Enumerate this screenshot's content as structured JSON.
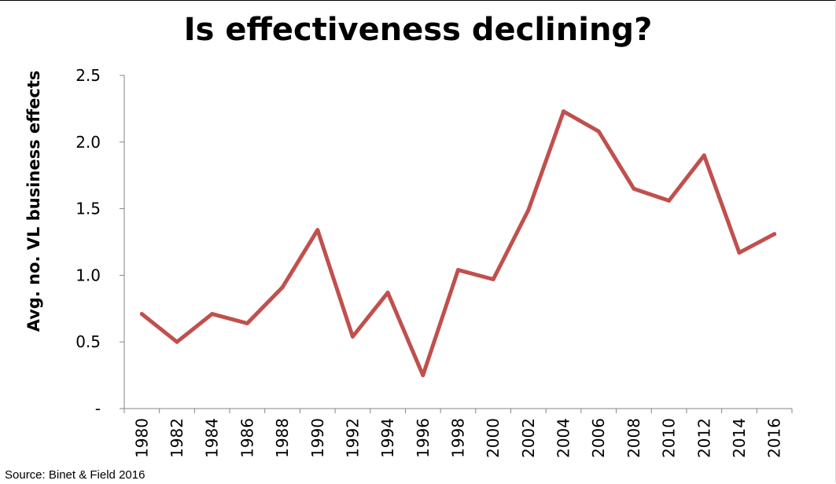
{
  "title": "Is effectiveness declining?",
  "source": "Source: Binet & Field 2016",
  "chart_data": {
    "type": "line",
    "title": "Is effectiveness declining?",
    "xlabel": "",
    "ylabel": "Avg. no. VL business effects",
    "categories": [
      "1980",
      "1982",
      "1984",
      "1986",
      "1988",
      "1990",
      "1992",
      "1994",
      "1996",
      "1998",
      "2000",
      "2002",
      "2004",
      "2006",
      "2008",
      "2010",
      "2012",
      "2014",
      "2016"
    ],
    "series": [
      {
        "values": [
          0.71,
          0.5,
          0.71,
          0.64,
          0.91,
          1.34,
          0.54,
          0.87,
          0.25,
          1.04,
          0.97,
          1.49,
          2.23,
          2.08,
          1.65,
          1.56,
          1.9,
          1.17,
          1.31
        ],
        "color": "#c0504d"
      }
    ],
    "yticks": [
      "-",
      "0.5",
      "1.0",
      "1.5",
      "2.0",
      "2.5"
    ],
    "ylim": [
      0,
      2.5
    ],
    "grid": false,
    "legend": "none"
  }
}
